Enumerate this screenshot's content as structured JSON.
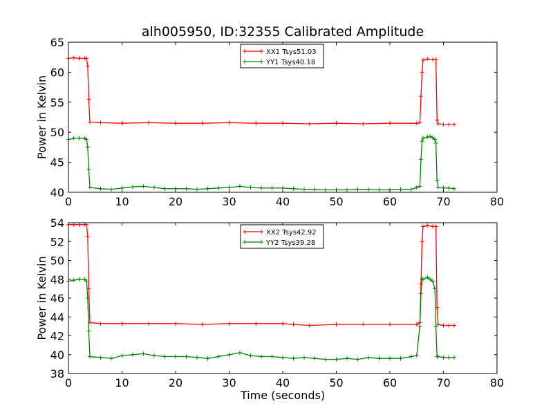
{
  "chart_data": [
    {
      "type": "line",
      "title": "alh005950, ID:32355 Calibrated Amplitude",
      "xlabel": "",
      "ylabel": "Power in Kelvin",
      "xlim": [
        0,
        80
      ],
      "ylim": [
        40,
        65
      ],
      "xticks": [
        0,
        10,
        20,
        30,
        40,
        50,
        60,
        70,
        80
      ],
      "yticks": [
        40,
        45,
        50,
        55,
        60,
        65
      ],
      "legend_position": "top-center",
      "grid": false,
      "series": [
        {
          "name": "XX1 Tsys51.03",
          "color": "#ff0000",
          "x": [
            0,
            1,
            2,
            3,
            3.4,
            3.6,
            3.8,
            4,
            6,
            10,
            15,
            20,
            25,
            30,
            35,
            40,
            45,
            50,
            55,
            60,
            65,
            65.6,
            65.8,
            66.0,
            66.2,
            67,
            68,
            68.6,
            68.8,
            69,
            70,
            71,
            72
          ],
          "y": [
            62.3,
            62.4,
            62.3,
            62.3,
            62.3,
            61.0,
            55.5,
            51.7,
            51.6,
            51.5,
            51.6,
            51.5,
            51.5,
            51.6,
            51.5,
            51.5,
            51.4,
            51.5,
            51.4,
            51.5,
            51.5,
            51.6,
            56.0,
            60.0,
            62.0,
            62.2,
            62.1,
            62.1,
            52.0,
            51.4,
            51.3,
            51.3,
            51.3
          ]
        },
        {
          "name": "YY1 Tsys40.18",
          "color": "#008000",
          "x": [
            0,
            1,
            2,
            3,
            3.4,
            3.6,
            3.8,
            4,
            6,
            8,
            10,
            12,
            14,
            16,
            18,
            20,
            22,
            24,
            26,
            28,
            30,
            32,
            34,
            36,
            38,
            40,
            42,
            44,
            46,
            48,
            50,
            52,
            54,
            56,
            58,
            60,
            62,
            64,
            65,
            65.6,
            65.8,
            66.0,
            66.2,
            67,
            67.5,
            68,
            68.4,
            68.6,
            68.8,
            69,
            70,
            71,
            72
          ],
          "y": [
            48.8,
            49.0,
            49.0,
            49.0,
            48.8,
            47.5,
            43.8,
            40.8,
            40.6,
            40.5,
            40.7,
            40.9,
            41.0,
            40.8,
            40.6,
            40.6,
            40.6,
            40.5,
            40.6,
            40.7,
            40.8,
            41.0,
            40.8,
            40.7,
            40.7,
            40.7,
            40.6,
            40.5,
            40.5,
            40.4,
            40.4,
            40.4,
            40.5,
            40.5,
            40.4,
            40.4,
            40.5,
            40.5,
            40.8,
            41.0,
            45.5,
            48.5,
            49.0,
            49.2,
            49.3,
            49.1,
            48.8,
            48.2,
            42.0,
            40.8,
            40.7,
            40.7,
            40.6
          ]
        }
      ]
    },
    {
      "type": "line",
      "title": "",
      "xlabel": "Time (seconds)",
      "ylabel": "Power in Kelvin",
      "xlim": [
        0,
        80
      ],
      "ylim": [
        38,
        54
      ],
      "xticks": [
        0,
        10,
        20,
        30,
        40,
        50,
        60,
        70,
        80
      ],
      "yticks": [
        38,
        40,
        42,
        44,
        46,
        48,
        50,
        52,
        54
      ],
      "legend_position": "top-center",
      "grid": false,
      "series": [
        {
          "name": "XX2 Tsys42.92",
          "color": "#ff0000",
          "x": [
            0,
            1,
            2,
            3,
            3.4,
            3.6,
            3.8,
            4,
            6,
            10,
            15,
            20,
            25,
            30,
            35,
            40,
            42,
            45,
            50,
            55,
            60,
            65,
            65.6,
            65.8,
            66.0,
            66.2,
            67,
            68,
            68.6,
            68.8,
            69,
            70,
            71,
            72
          ],
          "y": [
            53.8,
            53.8,
            53.8,
            53.8,
            53.8,
            52.5,
            47.0,
            43.4,
            43.3,
            43.3,
            43.3,
            43.3,
            43.2,
            43.3,
            43.3,
            43.3,
            43.2,
            43.1,
            43.2,
            43.2,
            43.2,
            43.2,
            43.4,
            47.5,
            52.0,
            53.6,
            53.7,
            53.6,
            53.6,
            45.0,
            43.2,
            43.1,
            43.1,
            43.1
          ]
        },
        {
          "name": "YY2 Tsys39.28",
          "color": "#008000",
          "x": [
            0,
            1,
            2,
            3,
            3.4,
            3.6,
            3.8,
            4,
            6,
            8,
            10,
            12,
            14,
            16,
            18,
            20,
            22,
            24,
            26,
            28,
            30,
            32,
            34,
            36,
            38,
            40,
            42,
            44,
            46,
            48,
            50,
            52,
            54,
            56,
            58,
            60,
            62,
            64,
            65,
            65.6,
            65.8,
            66.0,
            66.2,
            67,
            67.5,
            68,
            68.4,
            68.6,
            68.8,
            69,
            70,
            71,
            72
          ],
          "y": [
            47.8,
            47.9,
            48.0,
            48.0,
            47.8,
            46.0,
            42.5,
            39.8,
            39.7,
            39.6,
            39.9,
            40.0,
            40.1,
            39.9,
            39.8,
            39.8,
            39.8,
            39.7,
            39.6,
            39.8,
            40.0,
            40.2,
            39.9,
            39.8,
            39.8,
            39.7,
            39.6,
            39.7,
            39.6,
            39.5,
            39.5,
            39.6,
            39.5,
            39.7,
            39.6,
            39.6,
            39.6,
            39.8,
            39.9,
            43.0,
            46.5,
            48.0,
            48.0,
            48.2,
            48.0,
            47.8,
            47.0,
            43.0,
            39.8,
            39.8,
            39.7,
            39.7,
            39.7
          ]
        }
      ]
    }
  ]
}
